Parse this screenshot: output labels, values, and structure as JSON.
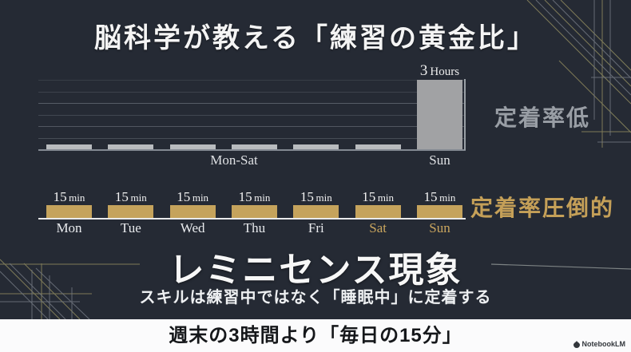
{
  "title": "脳科学が教える「練習の黄金比」",
  "colors": {
    "background": "#252a34",
    "bar_gray_tall": "#a1a2a4",
    "bar_gray_small": "#b9bcbf",
    "bar_gold": "#c5a35c",
    "label_gray": "#999ea5",
    "label_gold": "#c5a058",
    "footer_background": "#fbfbfc",
    "ornament_gold": "#8e8a5f",
    "ornament_gray": "#757b85"
  },
  "chart_data": [
    {
      "type": "bar",
      "title": "weekend-cramming-pattern",
      "categories": [
        "Mon",
        "Tue",
        "Wed",
        "Thu",
        "Fri",
        "Sat",
        "Sun"
      ],
      "values": [
        0.2,
        0.2,
        0.2,
        0.2,
        0.2,
        0.2,
        3
      ],
      "unit": "hours",
      "ylim": [
        0,
        3
      ],
      "grid": true,
      "value_label": "3 Hours",
      "x_group_label": "Mon-Sat",
      "x_sun_label": "Sun",
      "side_label": "定着率低",
      "legend_position": "right"
    },
    {
      "type": "bar",
      "title": "daily-practice-pattern",
      "categories": [
        "Mon",
        "Tue",
        "Wed",
        "Thu",
        "Fri",
        "Sat",
        "Sun"
      ],
      "values": [
        15,
        15,
        15,
        15,
        15,
        15,
        15
      ],
      "unit": "minutes",
      "ylim": [
        0,
        15
      ],
      "grid": false,
      "value_label": "15 min",
      "highlight_days": [
        "Sat",
        "Sun"
      ],
      "side_label": "定着率圧倒的",
      "legend_position": "right"
    }
  ],
  "phenomenon": {
    "title": "レミニセンス現象",
    "subtitle": "スキルは練習中ではなく「睡眠中」に定着する"
  },
  "footer": {
    "message": "週末の3時間より「毎日の15分」",
    "brand": "NotebookLM"
  }
}
